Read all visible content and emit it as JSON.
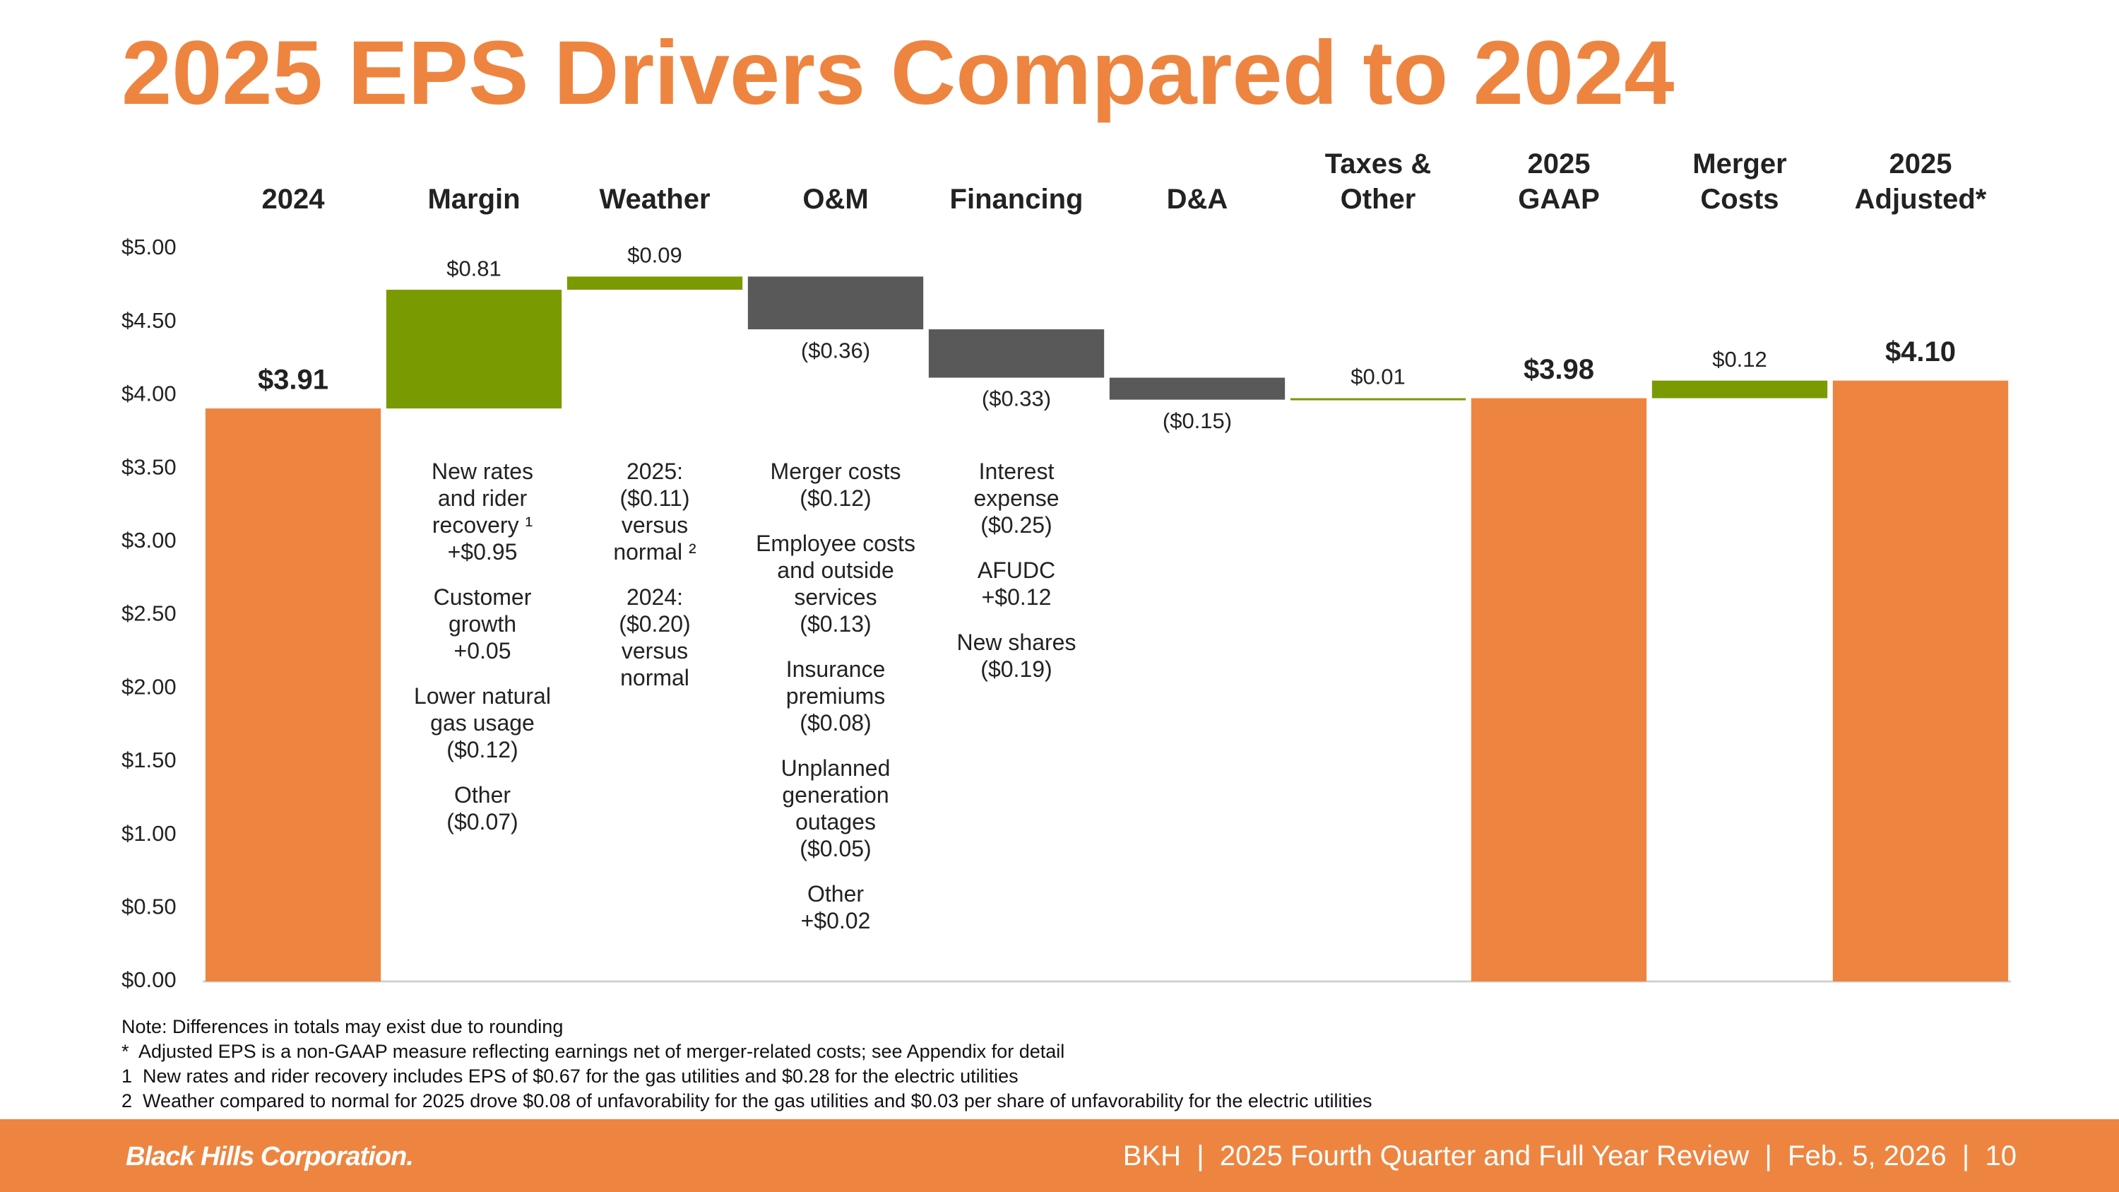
{
  "chart_data": {
    "type": "waterfall",
    "title": "2025 EPS Drivers Compared to 2024",
    "categories": [
      "2024",
      "Margin",
      "Weather",
      "O&M",
      "Financing",
      "D&A",
      "Taxes &\nOther",
      "2025\nGAAP",
      "Merger\nCosts",
      "2025\nAdjusted*"
    ],
    "bar_types": [
      "total",
      "delta",
      "delta",
      "delta",
      "delta",
      "delta",
      "delta",
      "total",
      "delta",
      "total"
    ],
    "values": [
      3.91,
      0.81,
      0.09,
      -0.36,
      -0.33,
      -0.15,
      0.01,
      3.98,
      0.12,
      4.1
    ],
    "value_labels": [
      "$3.91",
      "$0.81",
      "$0.09",
      "($0.36)",
      "($0.33)",
      "($0.15)",
      "$0.01",
      "$3.98",
      "$0.12",
      "$4.10"
    ],
    "colors": {
      "total": "#ED8541",
      "increase": "#7A9A01",
      "decrease": "#595959"
    },
    "ylim": [
      0,
      5
    ],
    "yticks": [
      {
        "value": 0,
        "label": "$0.00"
      },
      {
        "value": 0.5,
        "label": "$0.50"
      },
      {
        "value": 1,
        "label": "$1.00"
      },
      {
        "value": 1.5,
        "label": "$1.50"
      },
      {
        "value": 2,
        "label": "$2.00"
      },
      {
        "value": 2.5,
        "label": "$2.50"
      },
      {
        "value": 3,
        "label": "$3.00"
      },
      {
        "value": 3.5,
        "label": "$3.50"
      },
      {
        "value": 4,
        "label": "$4.00"
      },
      {
        "value": 4.5,
        "label": "$4.50"
      },
      {
        "value": 5,
        "label": "$5.00"
      }
    ],
    "annotations": [
      [],
      [
        "New rates\nand rider\nrecovery ¹\n+$0.95",
        "Customer\ngrowth\n+0.05",
        "Lower natural\ngas usage\n($0.12)",
        "Other\n($0.07)"
      ],
      [
        "2025:\n($0.11)\nversus\nnormal ²",
        "2024:\n($0.20)\nversus\nnormal"
      ],
      [
        "Merger costs\n($0.12)",
        "Employee costs\nand outside\nservices\n($0.13)",
        "Insurance\npremiums\n($0.08)",
        "Unplanned\ngeneration\noutages\n($0.05)",
        "Other\n+$0.02"
      ],
      [
        "Interest\nexpense\n($0.25)",
        "AFUDC\n+$0.12",
        "New shares\n($0.19)"
      ],
      [],
      [],
      [],
      [],
      []
    ]
  },
  "footnotes": [
    "Note: Differences in totals may exist due to rounding",
    "*  Adjusted EPS is a non-GAAP measure reflecting earnings net of merger-related costs; see Appendix for detail",
    "1  New rates and rider recovery includes EPS of $0.67 for the gas utilities and $0.28 for the electric utilities",
    "2  Weather compared to normal for 2025 drove $0.08 of unfavorability for the gas utilities and $0.03 per share of unfavorability for the electric utilities"
  ],
  "footer": {
    "logo": "Black Hills Corporation.",
    "text": "BKH  |  2025 Fourth Quarter and Full Year Review  |  Feb. 5, 2026  |  10"
  }
}
